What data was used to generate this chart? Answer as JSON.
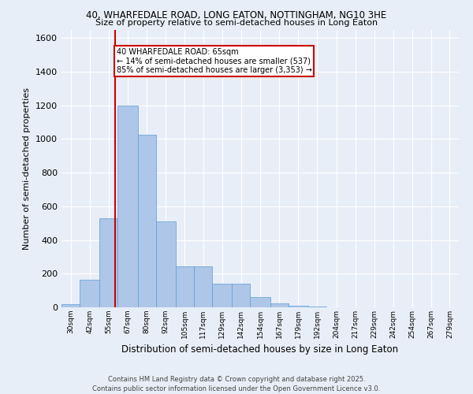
{
  "title1": "40, WHARFEDALE ROAD, LONG EATON, NOTTINGHAM, NG10 3HE",
  "title2": "Size of property relative to semi-detached houses in Long Eaton",
  "xlabel": "Distribution of semi-detached houses by size in Long Eaton",
  "ylabel": "Number of semi-detached properties",
  "bins": [
    30,
    42,
    55,
    67,
    80,
    92,
    105,
    117,
    129,
    142,
    154,
    167,
    179,
    192,
    204,
    217,
    229,
    242,
    254,
    267,
    279
  ],
  "values": [
    20,
    165,
    530,
    1200,
    1025,
    510,
    245,
    245,
    140,
    140,
    60,
    25,
    10,
    5,
    2,
    1,
    0,
    0,
    0,
    0
  ],
  "bar_color": "#aec6e8",
  "bar_edge_color": "#5a9fd4",
  "property_size": 65,
  "property_label": "40 WHARFEDALE ROAD: 65sqm",
  "pct_smaller": 14,
  "count_smaller": 537,
  "pct_larger": 85,
  "count_larger": 3353,
  "vline_color": "#cc0000",
  "annotation_box_color": "#cc0000",
  "background_color": "#e8eef7",
  "grid_color": "#ffffff",
  "ylim": [
    0,
    1650
  ],
  "yticks": [
    0,
    200,
    400,
    600,
    800,
    1000,
    1200,
    1400,
    1600
  ],
  "footnote": "Contains HM Land Registry data © Crown copyright and database right 2025.\nContains public sector information licensed under the Open Government Licence v3.0."
}
